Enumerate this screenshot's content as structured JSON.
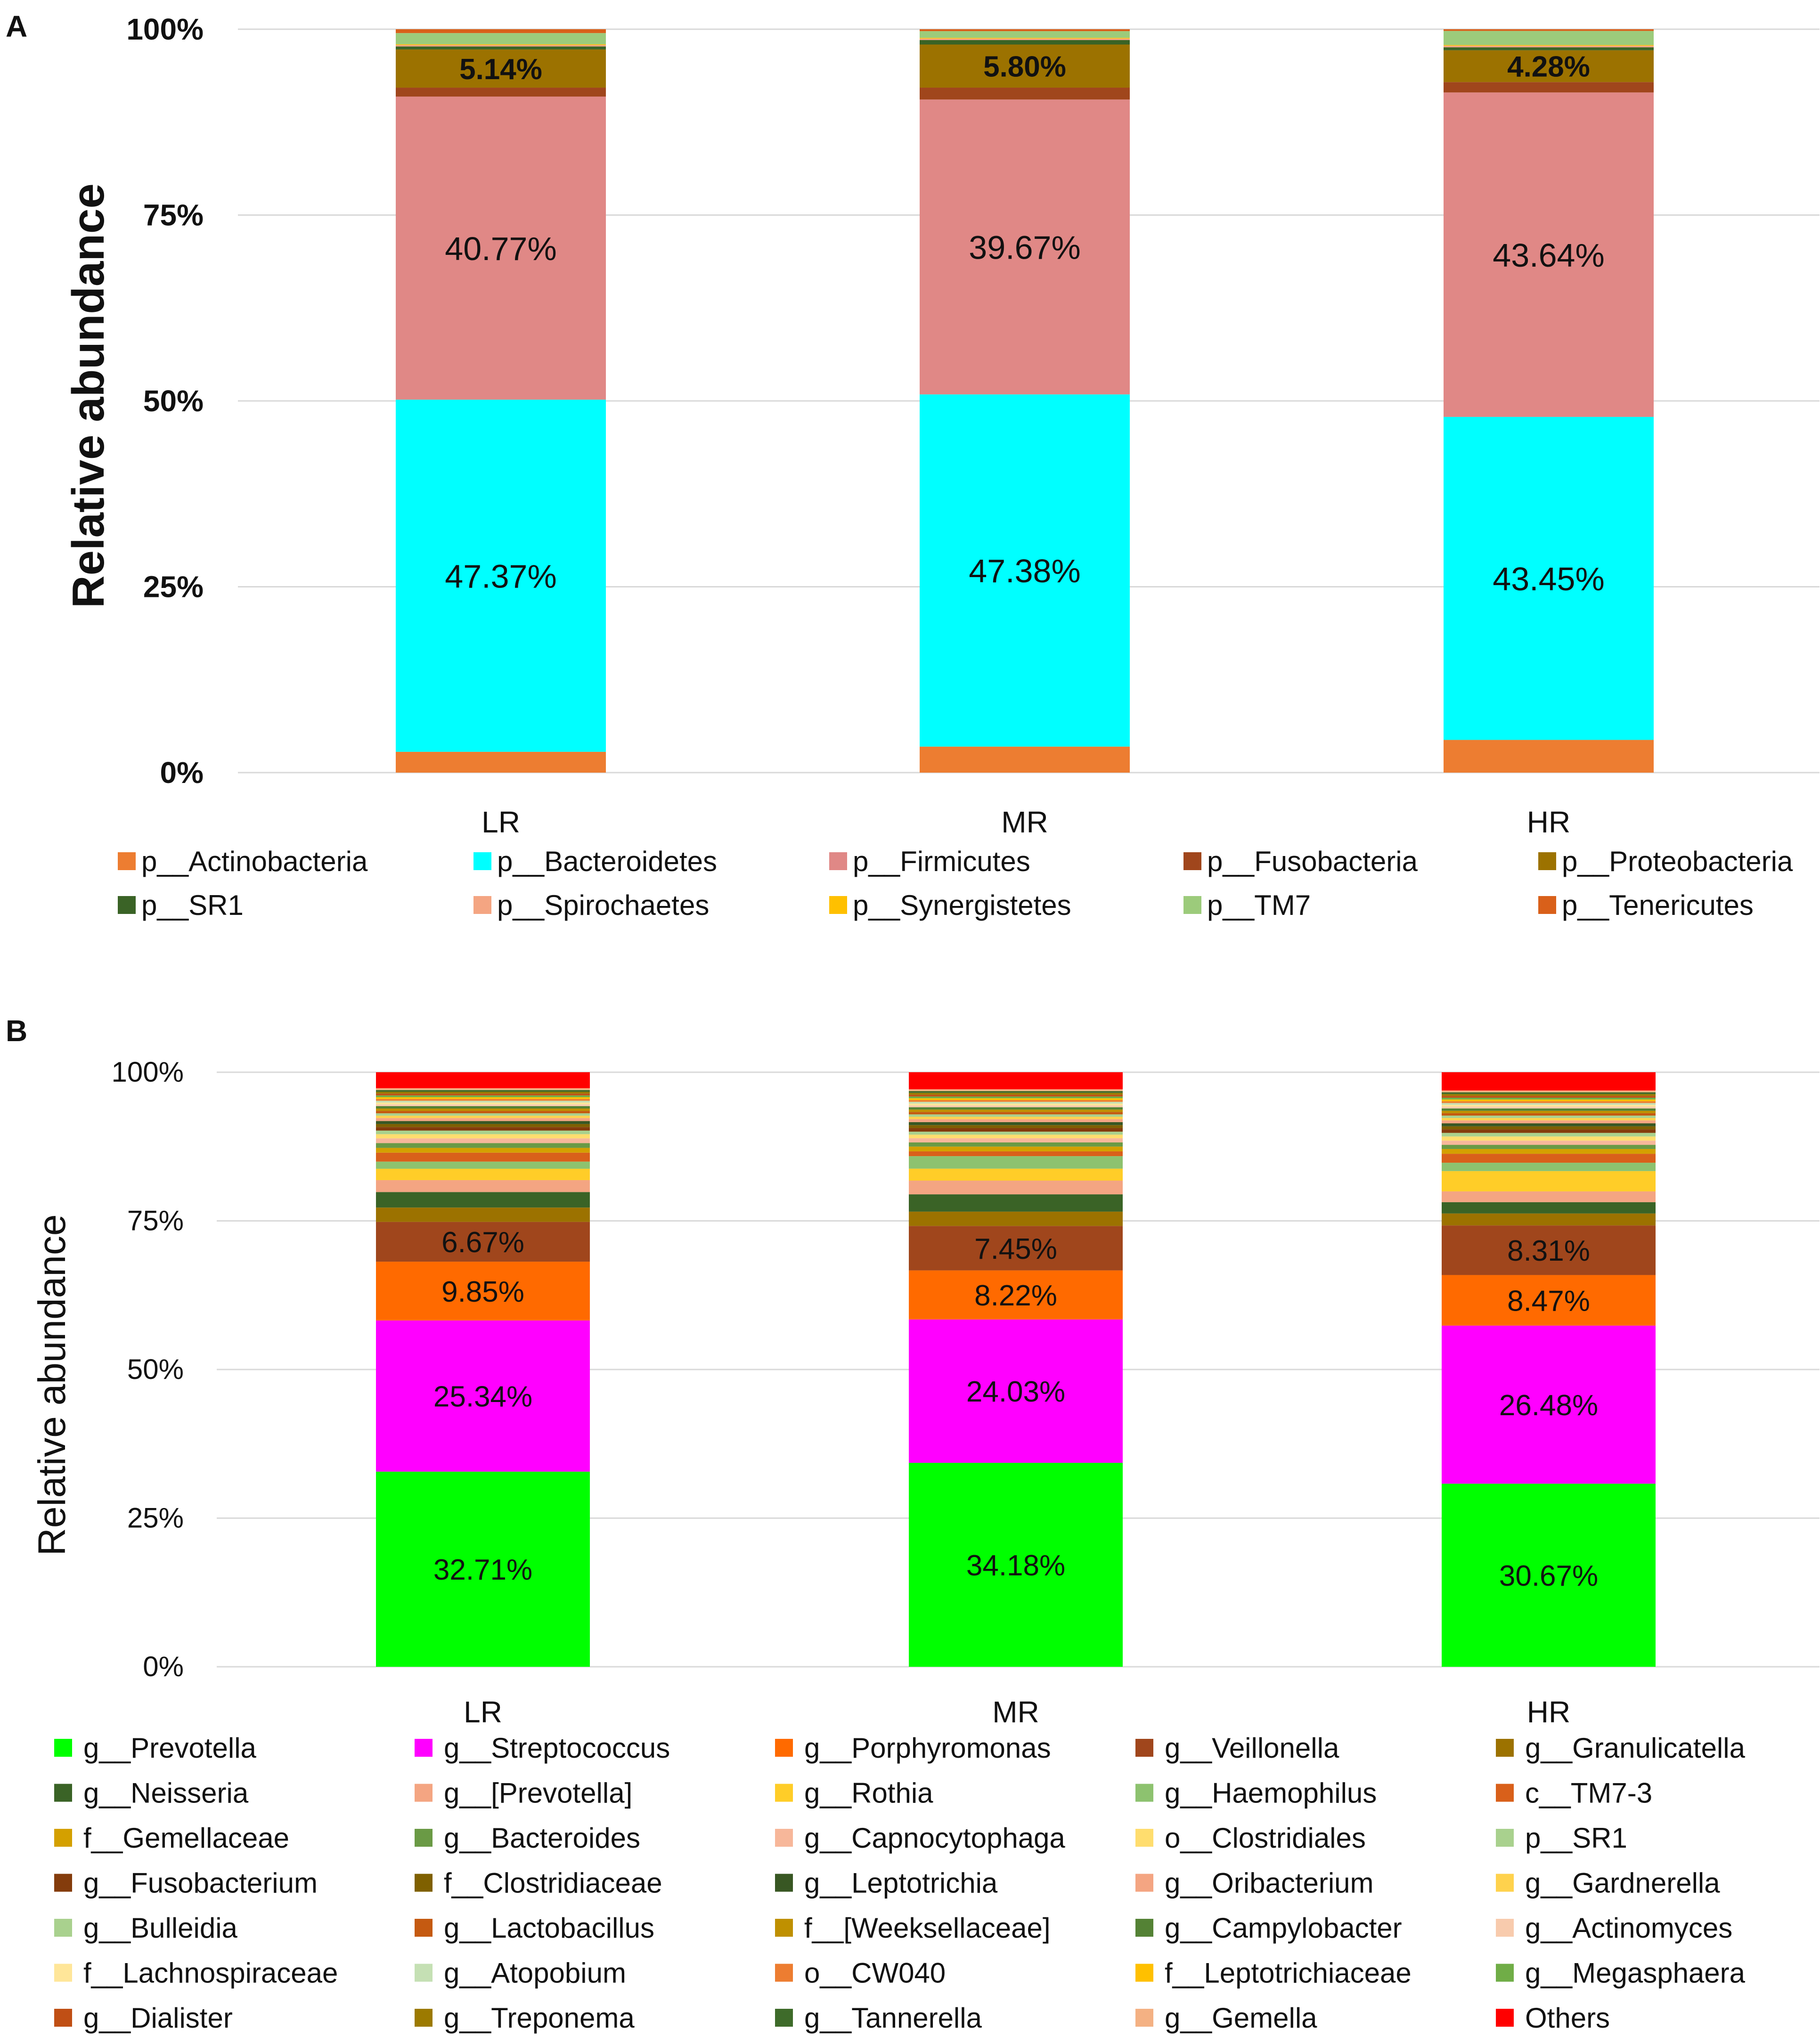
{
  "figure": {
    "panel_a_letter": "A",
    "panel_b_letter": "B"
  },
  "chart_data": [
    {
      "type": "bar",
      "stacked": true,
      "panel": "A",
      "title": "",
      "xlabel": "",
      "ylabel": "Relative abundance",
      "ylim": [
        0,
        100
      ],
      "yticks": [
        "0%",
        "25%",
        "50%",
        "75%",
        "100%"
      ],
      "grid": true,
      "legend_position": "bottom",
      "categories": [
        "LR",
        "MR",
        "HR"
      ],
      "series": [
        {
          "name": "p__Actinobacteria",
          "color": "#ED7D31",
          "values": [
            2.8,
            3.5,
            4.4
          ]
        },
        {
          "name": "p__Bacteroidetes",
          "color": "#00FFFF",
          "values": [
            47.37,
            47.38,
            43.45
          ],
          "labels": [
            "47.37%",
            "47.38%",
            "43.45%"
          ]
        },
        {
          "name": "p__Firmicutes",
          "color": "#E08886",
          "values": [
            40.77,
            39.67,
            43.64
          ],
          "labels": [
            "40.77%",
            "39.67%",
            "43.64%"
          ]
        },
        {
          "name": "p__Fusobacteria",
          "color": "#A0461C",
          "values": [
            1.2,
            1.6,
            1.4
          ]
        },
        {
          "name": "p__Proteobacteria",
          "color": "#9C7200",
          "values": [
            5.14,
            5.8,
            4.28
          ],
          "labels": [
            "5.14%",
            "5.80%",
            "4.28%"
          ]
        },
        {
          "name": "p__SR1",
          "color": "#3A6326",
          "values": [
            0.4,
            0.6,
            0.4
          ]
        },
        {
          "name": "p__Spirochaetes",
          "color": "#F4A582",
          "values": [
            0.2,
            0.2,
            0.2
          ]
        },
        {
          "name": "p__Synergistetes",
          "color": "#FFC000",
          "values": [
            0.1,
            0.1,
            0.1
          ]
        },
        {
          "name": "p__TM7",
          "color": "#9CCB7B",
          "values": [
            1.5,
            0.9,
            1.9
          ]
        },
        {
          "name": "p__Tenericutes",
          "color": "#D9601A",
          "values": [
            0.52,
            0.26,
            0.23
          ]
        }
      ]
    },
    {
      "type": "bar",
      "stacked": true,
      "panel": "B",
      "title": "",
      "xlabel": "",
      "ylabel": "Relative abundance",
      "ylim": [
        0,
        100
      ],
      "yticks": [
        "0%",
        "25%",
        "50%",
        "75%",
        "100%"
      ],
      "grid": true,
      "legend_position": "bottom",
      "categories": [
        "LR",
        "MR",
        "HR"
      ],
      "series": [
        {
          "name": "g__Prevotella",
          "color": "#00FF00",
          "values": [
            32.71,
            34.18,
            30.67
          ],
          "labels": [
            "32.71%",
            "34.18%",
            "30.67%"
          ]
        },
        {
          "name": "g__Streptococcus",
          "color": "#FF00FF",
          "values": [
            25.34,
            24.03,
            26.48
          ],
          "labels": [
            "25.34%",
            "24.03%",
            "26.48%"
          ]
        },
        {
          "name": "g__Porphyromonas",
          "color": "#FF6A00",
          "values": [
            9.85,
            8.22,
            8.47
          ],
          "labels": [
            "9.85%",
            "8.22%",
            "8.47%"
          ]
        },
        {
          "name": "g__Veillonella",
          "color": "#A0461C",
          "values": [
            6.67,
            7.45,
            8.31
          ],
          "labels": [
            "6.67%",
            "7.45%",
            "8.31%"
          ]
        },
        {
          "name": "g__Granulicatella",
          "color": "#9C7200",
          "values": [
            2.4,
            2.4,
            2.0
          ]
        },
        {
          "name": "g__Neisseria",
          "color": "#3A6326",
          "values": [
            2.6,
            2.9,
            1.9
          ]
        },
        {
          "name": "g__[Prevotella]",
          "color": "#F4A582",
          "values": [
            2.0,
            2.3,
            1.8
          ]
        },
        {
          "name": "g__Rothia",
          "color": "#FFCD28",
          "values": [
            1.9,
            2.0,
            3.4
          ]
        },
        {
          "name": "g__Haemophilus",
          "color": "#8DC26F",
          "values": [
            1.2,
            2.1,
            1.4
          ]
        },
        {
          "name": "c__TM7-3",
          "color": "#D9601A",
          "values": [
            1.5,
            0.8,
            1.5
          ]
        },
        {
          "name": "f__Gemellaceae",
          "color": "#D4A000",
          "values": [
            0.8,
            0.8,
            0.8
          ]
        },
        {
          "name": "g__Bacteroides",
          "color": "#6A9A45",
          "values": [
            0.8,
            0.7,
            0.7
          ]
        },
        {
          "name": "g__Capnocytophaga",
          "color": "#F7B79A",
          "values": [
            0.8,
            0.7,
            0.7
          ]
        },
        {
          "name": "o__Clostridiales",
          "color": "#FFDD6E",
          "values": [
            0.7,
            0.6,
            0.7
          ]
        },
        {
          "name": "p__SR1",
          "color": "#A9D18E",
          "values": [
            0.6,
            0.5,
            0.6
          ]
        },
        {
          "name": "g__Fusobacterium",
          "color": "#843C0C",
          "values": [
            0.6,
            0.6,
            0.6
          ]
        },
        {
          "name": "f__Clostridiaceae",
          "color": "#7F6000",
          "values": [
            0.5,
            0.5,
            0.5
          ]
        },
        {
          "name": "g__Leptotrichia",
          "color": "#385723",
          "values": [
            0.5,
            0.5,
            0.5
          ]
        },
        {
          "name": "g__Oribacterium",
          "color": "#F4A582",
          "values": [
            0.5,
            0.5,
            0.5
          ]
        },
        {
          "name": "g__Gardnerella",
          "color": "#FFD24D",
          "values": [
            0.4,
            0.4,
            0.4
          ]
        },
        {
          "name": "g__Bulleidia",
          "color": "#A9D18E",
          "values": [
            0.4,
            0.4,
            0.4
          ]
        },
        {
          "name": "g__Lactobacillus",
          "color": "#C55A11",
          "values": [
            0.4,
            0.4,
            0.4
          ]
        },
        {
          "name": "f__[Weeksellaceae]",
          "color": "#BF9000",
          "values": [
            0.4,
            0.4,
            0.4
          ]
        },
        {
          "name": "g__Campylobacter",
          "color": "#548235",
          "values": [
            0.4,
            0.4,
            0.4
          ]
        },
        {
          "name": "g__Actinomyces",
          "color": "#F8CBAD",
          "values": [
            0.3,
            0.3,
            0.3
          ]
        },
        {
          "name": "f__Lachnospiraceae",
          "color": "#FFE699",
          "values": [
            0.3,
            0.3,
            0.3
          ]
        },
        {
          "name": "g__Atopobium",
          "color": "#C5E0B4",
          "values": [
            0.3,
            0.3,
            0.3
          ]
        },
        {
          "name": "o__CW040",
          "color": "#ED7D31",
          "values": [
            0.3,
            0.3,
            0.3
          ]
        },
        {
          "name": "f__Leptotrichiaceae",
          "color": "#FFC000",
          "values": [
            0.3,
            0.3,
            0.3
          ]
        },
        {
          "name": "g__Megasphaera",
          "color": "#70AD47",
          "values": [
            0.3,
            0.3,
            0.3
          ]
        },
        {
          "name": "g__Dialister",
          "color": "#C04F15",
          "values": [
            0.3,
            0.3,
            0.3
          ]
        },
        {
          "name": "g__Treponema",
          "color": "#9C7A00",
          "values": [
            0.3,
            0.3,
            0.3
          ]
        },
        {
          "name": "g__Tannerella",
          "color": "#3E6B2A",
          "values": [
            0.3,
            0.3,
            0.3
          ]
        },
        {
          "name": "g__Gemella",
          "color": "#F4B183",
          "values": [
            0.3,
            0.3,
            0.3
          ]
        },
        {
          "name": "Others",
          "color": "#FF0000",
          "values": [
            2.68,
            2.86,
            3.06
          ]
        }
      ]
    }
  ]
}
